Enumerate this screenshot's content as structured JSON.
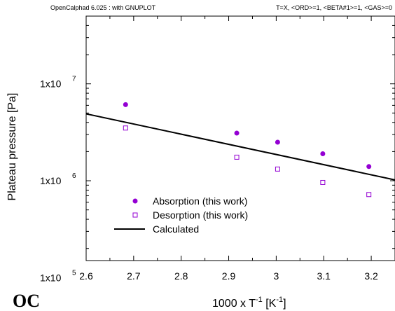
{
  "header": {
    "left": "OpenCalphad   6.025 :  with GNUPLOT",
    "right": "T=X,  <ORD>=1, <BETA#1>=1, <GAS>=0"
  },
  "logo_text": "OC",
  "chart_data": {
    "type": "scatter",
    "xlabel": {
      "main": "1000 x T",
      "sup1": "-1",
      "mid": " [K",
      "sup2": "-1",
      "end": "]"
    },
    "ylabel": "Plateau pressure [Pa]",
    "xlim": [
      2.6,
      3.25
    ],
    "ylim": [
      150000,
      50000000
    ],
    "yscale": "log",
    "x_ticks": [
      {
        "v": 2.6,
        "label": "2.6"
      },
      {
        "v": 2.7,
        "label": "2.7"
      },
      {
        "v": 2.8,
        "label": "2.8"
      },
      {
        "v": 2.9,
        "label": "2.9"
      },
      {
        "v": 3.0,
        "label": "3"
      },
      {
        "v": 3.1,
        "label": "3.1"
      },
      {
        "v": 3.2,
        "label": "3.2"
      }
    ],
    "y_ticks": [
      {
        "v": 100000,
        "base": "1x10",
        "exp": "5"
      },
      {
        "v": 1000000,
        "base": "1x10",
        "exp": "6"
      },
      {
        "v": 10000000,
        "base": "1x10",
        "exp": "7"
      }
    ],
    "legend_position": "bottom-left",
    "series": [
      {
        "name": "Absorption (this work)",
        "marker": "filled-circle",
        "color": "#9400d3",
        "x": [
          2.683,
          2.917,
          3.003,
          3.098,
          3.195
        ],
        "y": [
          6100000,
          3100000,
          2500000,
          1900000,
          1400000
        ]
      },
      {
        "name": "Desorption (this work)",
        "marker": "open-square",
        "color": "#9400d3",
        "x": [
          2.683,
          2.917,
          3.003,
          3.098,
          3.195
        ],
        "y": [
          3500000,
          1750000,
          1320000,
          960000,
          720000
        ]
      },
      {
        "name": "Calculated",
        "marker": "line",
        "color": "#000000",
        "x": [
          2.6,
          3.25
        ],
        "y": [
          4900000,
          1020000
        ]
      }
    ]
  }
}
